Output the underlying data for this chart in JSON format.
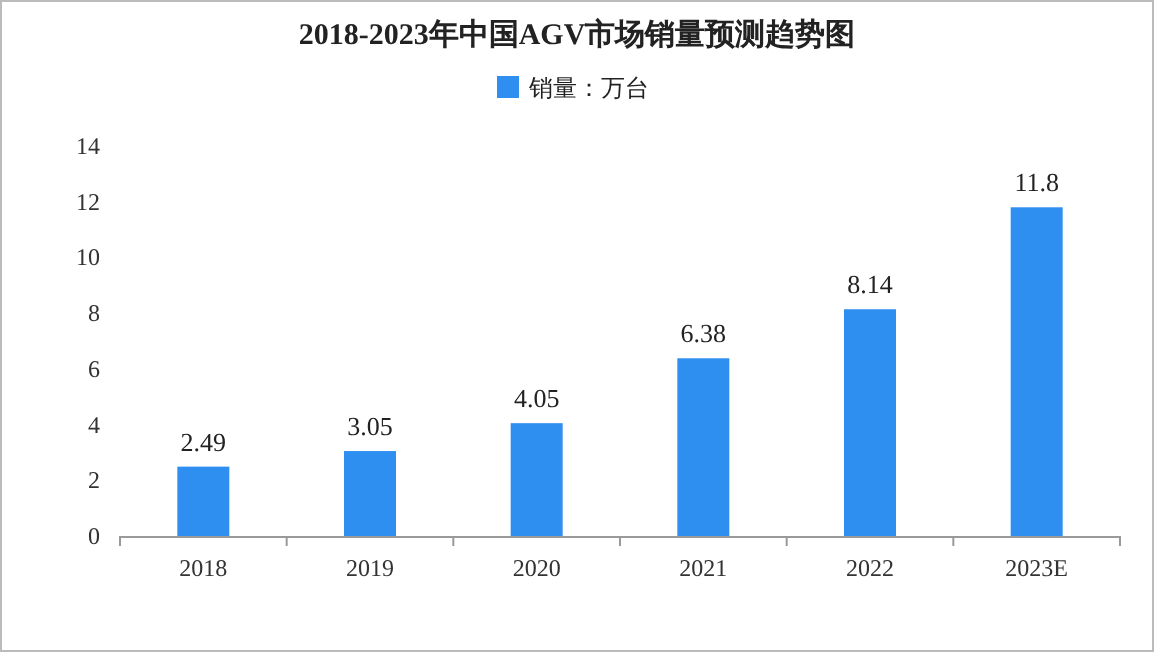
{
  "chart_data": {
    "type": "bar",
    "title": "2018-2023年中国AGV市场销量预测趋势图",
    "categories": [
      "2018",
      "2019",
      "2020",
      "2021",
      "2022",
      "2023E"
    ],
    "series": [
      {
        "name": "销量：万台",
        "color": "#2f8ff0",
        "values": [
          2.49,
          3.05,
          4.05,
          6.38,
          8.14,
          11.8
        ]
      }
    ],
    "ylim": [
      0,
      14
    ],
    "yticks": [
      0,
      2,
      4,
      6,
      8,
      10,
      12,
      14
    ],
    "data_labels": true,
    "legend": "top",
    "grid": false
  }
}
